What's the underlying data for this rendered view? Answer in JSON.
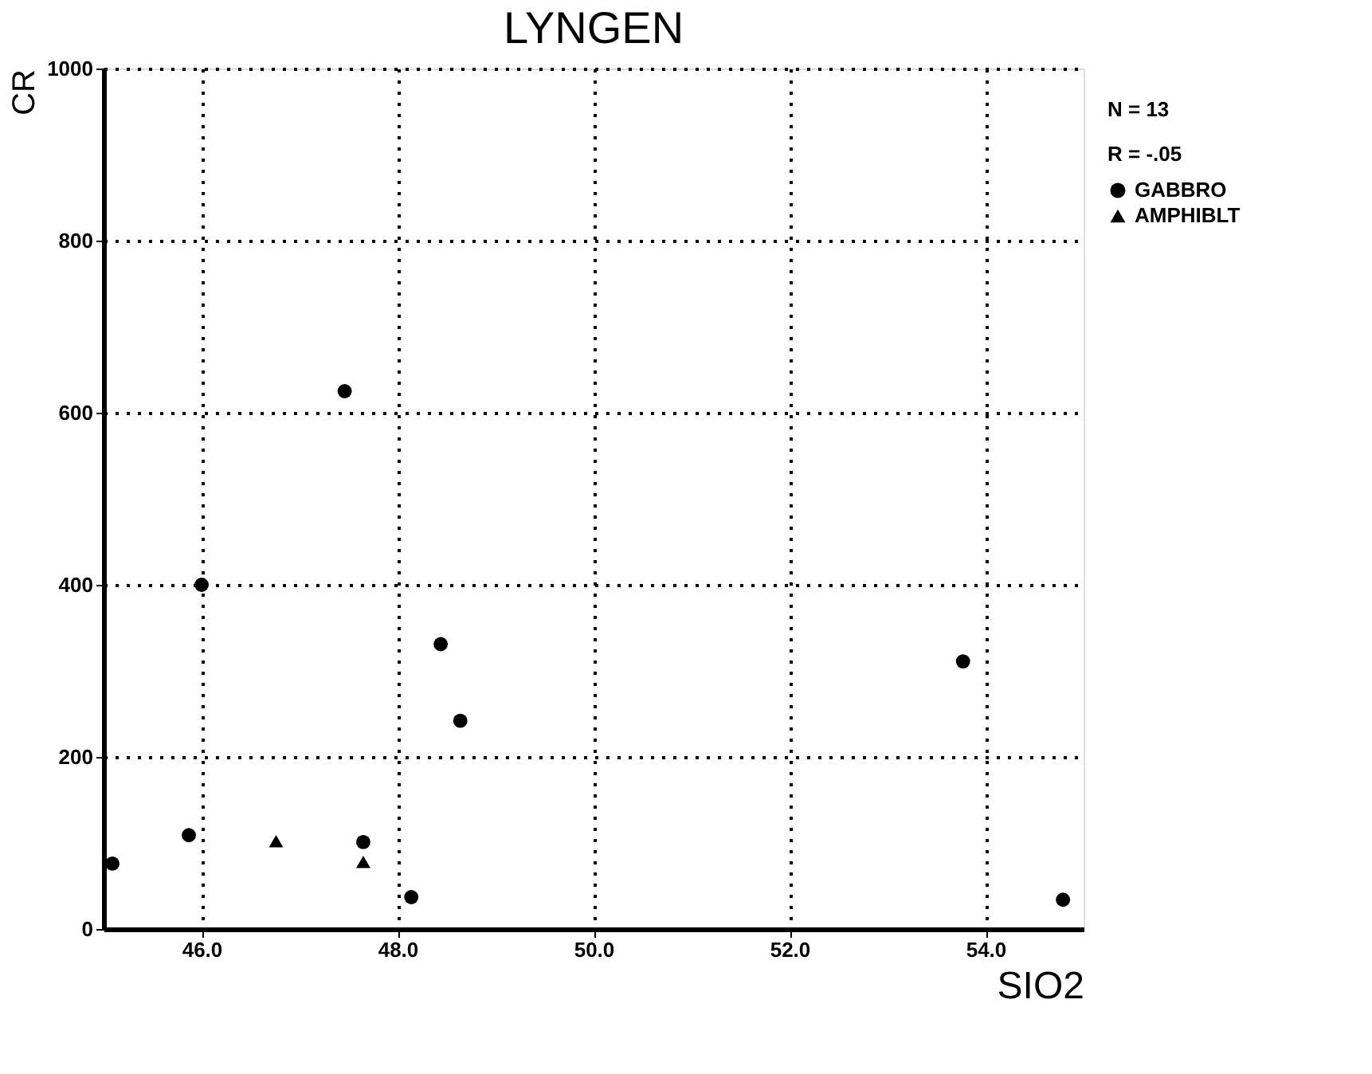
{
  "chart_data": {
    "type": "scatter",
    "title": "LYNGEN",
    "xlabel": "SIO2",
    "ylabel": "CR",
    "xlim": [
      45,
      55
    ],
    "ylim": [
      0,
      1000
    ],
    "xticks": [
      {
        "value": 46,
        "label": "46.0"
      },
      {
        "value": 48,
        "label": "48.0"
      },
      {
        "value": 50,
        "label": "50.0"
      },
      {
        "value": 52,
        "label": "52.0"
      },
      {
        "value": 54,
        "label": "54.0"
      }
    ],
    "yticks": [
      0,
      200,
      400,
      600,
      800,
      1000
    ],
    "grid": true,
    "legend": "right",
    "annotations": [
      "N =      13",
      "R =     -.05"
    ],
    "series": [
      {
        "name": "GABBRO",
        "color": "#000000",
        "marker": "circle",
        "x": [
          45.09,
          45.87,
          46.0,
          47.46,
          47.65,
          48.14,
          48.44,
          48.64,
          53.77,
          54.79
        ],
        "values": [
          76,
          109,
          400,
          625,
          101,
          37,
          331,
          242,
          311,
          34
        ]
      },
      {
        "name": "AMPHIBLT",
        "color": "#000000",
        "marker": "triangle",
        "x": [
          46.76,
          47.65
        ],
        "values": [
          102,
          78
        ]
      }
    ]
  }
}
